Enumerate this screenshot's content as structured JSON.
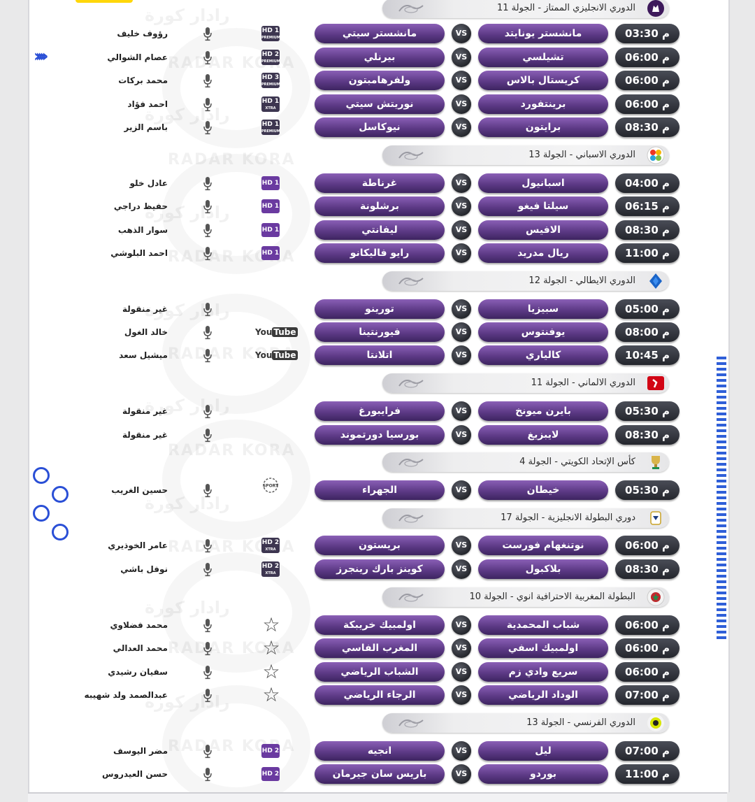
{
  "watermark": {
    "arabic": "رادار كورة",
    "latin": "RADAR KORA"
  },
  "channel_labels": {
    "hd": "HD",
    "premium": "PREMIUM",
    "xtra": "XTRA",
    "youtube_you": "You",
    "youtube_tube": "Tube",
    "sports": "SPORT"
  },
  "leagues": [
    {
      "name": "الدوري الانجليزي الممتاز - الجولة 11",
      "logo": "premier-league-logo",
      "matches": [
        {
          "time": "03:30 م",
          "home": "مانشستر يونايتد",
          "vs": "VS",
          "away": "مانشستر سيتي",
          "channel": {
            "type": "hd-premium",
            "num": "1"
          },
          "commentator": "رؤوف خليف"
        },
        {
          "time": "06:00 م",
          "home": "تشيلسي",
          "vs": "VS",
          "away": "بيرنلي",
          "channel": {
            "type": "hd-premium",
            "num": "2"
          },
          "commentator": "عصام الشوالي"
        },
        {
          "time": "06:00 م",
          "home": "كريستال بالاس",
          "vs": "VS",
          "away": "ولفرهامبتون",
          "channel": {
            "type": "hd-premium",
            "num": "3"
          },
          "commentator": "محمد بركات"
        },
        {
          "time": "06:00 م",
          "home": "برينتفورد",
          "vs": "VS",
          "away": "نوريتش سيتي",
          "channel": {
            "type": "hd-xtra",
            "num": "1"
          },
          "commentator": "احمد فؤاد"
        },
        {
          "time": "08:30 م",
          "home": "برايتون",
          "vs": "VS",
          "away": "نيوكاسل",
          "channel": {
            "type": "hd-premium",
            "num": "1"
          },
          "commentator": "باسم الزير"
        }
      ]
    },
    {
      "name": "الدوري الاسباني - الجولة 13",
      "logo": "laliga-logo",
      "matches": [
        {
          "time": "04:00 م",
          "home": "اسبانيول",
          "vs": "VS",
          "away": "غرناطة",
          "channel": {
            "type": "hd-purple",
            "num": "1"
          },
          "commentator": "عادل خلو"
        },
        {
          "time": "06:15 م",
          "home": "سيلتا فيغو",
          "vs": "VS",
          "away": "برشلونة",
          "channel": {
            "type": "hd-purple",
            "num": "1"
          },
          "commentator": "حفيظ دراجي"
        },
        {
          "time": "08:30 م",
          "home": "الافيس",
          "vs": "VS",
          "away": "ليفانتي",
          "channel": {
            "type": "hd-purple",
            "num": "1"
          },
          "commentator": "سوار الذهب"
        },
        {
          "time": "11:00 م",
          "home": "ريال مدريد",
          "vs": "VS",
          "away": "رايو فاليكانو",
          "channel": {
            "type": "hd-purple",
            "num": "1"
          },
          "commentator": "احمد البلوشي"
        }
      ]
    },
    {
      "name": "الدوري الايطالي - الجولة 12",
      "logo": "serie-a-logo",
      "matches": [
        {
          "time": "05:00 م",
          "home": "سبيزيا",
          "vs": "VS",
          "away": "تورينو",
          "channel": {
            "type": "none",
            "num": ""
          },
          "commentator": "غير منقولة"
        },
        {
          "time": "08:00 م",
          "home": "يوفنتوس",
          "vs": "VS",
          "away": "فيورنتينا",
          "channel": {
            "type": "youtube",
            "num": ""
          },
          "commentator": "خالد الغول"
        },
        {
          "time": "10:45 م",
          "home": "كالياري",
          "vs": "VS",
          "away": "اتلانتا",
          "channel": {
            "type": "youtube",
            "num": ""
          },
          "commentator": "ميشيل سعد"
        }
      ]
    },
    {
      "name": "الدوري الالماني - الجولة 11",
      "logo": "bundesliga-logo",
      "matches": [
        {
          "time": "05:30 م",
          "home": "بايرن ميونخ",
          "vs": "VS",
          "away": "فرايبورغ",
          "channel": {
            "type": "none",
            "num": ""
          },
          "commentator": "غير منقولة"
        },
        {
          "time": "08:30 م",
          "home": "لايبزيغ",
          "vs": "VS",
          "away": "بورسيا دورتموند",
          "channel": {
            "type": "none",
            "num": ""
          },
          "commentator": "غير منقولة"
        }
      ]
    },
    {
      "name": "كأس الإتحاد الكويتي - الجولة 4",
      "logo": "kuwait-cup-logo",
      "matches": [
        {
          "time": "05:30 م",
          "home": "خيطان",
          "vs": "VS",
          "away": "الجهراء",
          "channel": {
            "type": "sports",
            "num": ""
          },
          "commentator": "حسين الغريب"
        }
      ]
    },
    {
      "name": "دوري البطولة الانجليزية - الجولة 17",
      "logo": "efl-championship-logo",
      "matches": [
        {
          "time": "06:00 م",
          "home": "نوتنغهام فورست",
          "vs": "VS",
          "away": "بريستون",
          "channel": {
            "type": "hd-xtra",
            "num": "2"
          },
          "commentator": "عامر الخوذيري"
        },
        {
          "time": "08:30 م",
          "home": "بلاكبول",
          "vs": "VS",
          "away": "كوينز بارك رينجرز",
          "channel": {
            "type": "hd-xtra",
            "num": "2"
          },
          "commentator": "نوفل باشي"
        }
      ]
    },
    {
      "name": "البطولة المغربية الاحترافية انوي - الجولة 10",
      "logo": "botola-logo",
      "matches": [
        {
          "time": "06:00 م",
          "home": "شباب المحمدية",
          "vs": "VS",
          "away": "اولمبيك خريبكة",
          "channel": {
            "type": "star",
            "num": ""
          },
          "commentator": "محمد فضلاوي"
        },
        {
          "time": "06:00 م",
          "home": "اولمبيك اسفي",
          "vs": "VS",
          "away": "المغرب الفاسي",
          "channel": {
            "type": "star",
            "num": ""
          },
          "commentator": "محمد العدالي"
        },
        {
          "time": "06:00 م",
          "home": "سريع وادي زم",
          "vs": "VS",
          "away": "الشباب الرياضي",
          "channel": {
            "type": "star",
            "num": ""
          },
          "commentator": "سفيان رشيدي"
        },
        {
          "time": "07:00 م",
          "home": "الوداد الرياضي",
          "vs": "VS",
          "away": "الرجاء الرياضي",
          "channel": {
            "type": "star",
            "num": ""
          },
          "commentator": "عبدالصمد ولد شهيبه"
        }
      ]
    },
    {
      "name": "الدوري الفرنسي - الجولة 13",
      "logo": "ligue-1-logo",
      "matches": [
        {
          "time": "07:00 م",
          "home": "ليل",
          "vs": "VS",
          "away": "انجيه",
          "channel": {
            "type": "hd-purple",
            "num": "2"
          },
          "commentator": "مضر اليوسف"
        },
        {
          "time": "11:00 م",
          "home": "بوردو",
          "vs": "VS",
          "away": "باريس سان جيرمان",
          "channel": {
            "type": "hd-purple",
            "num": "2"
          },
          "commentator": "حسن العيدروس"
        }
      ]
    }
  ]
}
